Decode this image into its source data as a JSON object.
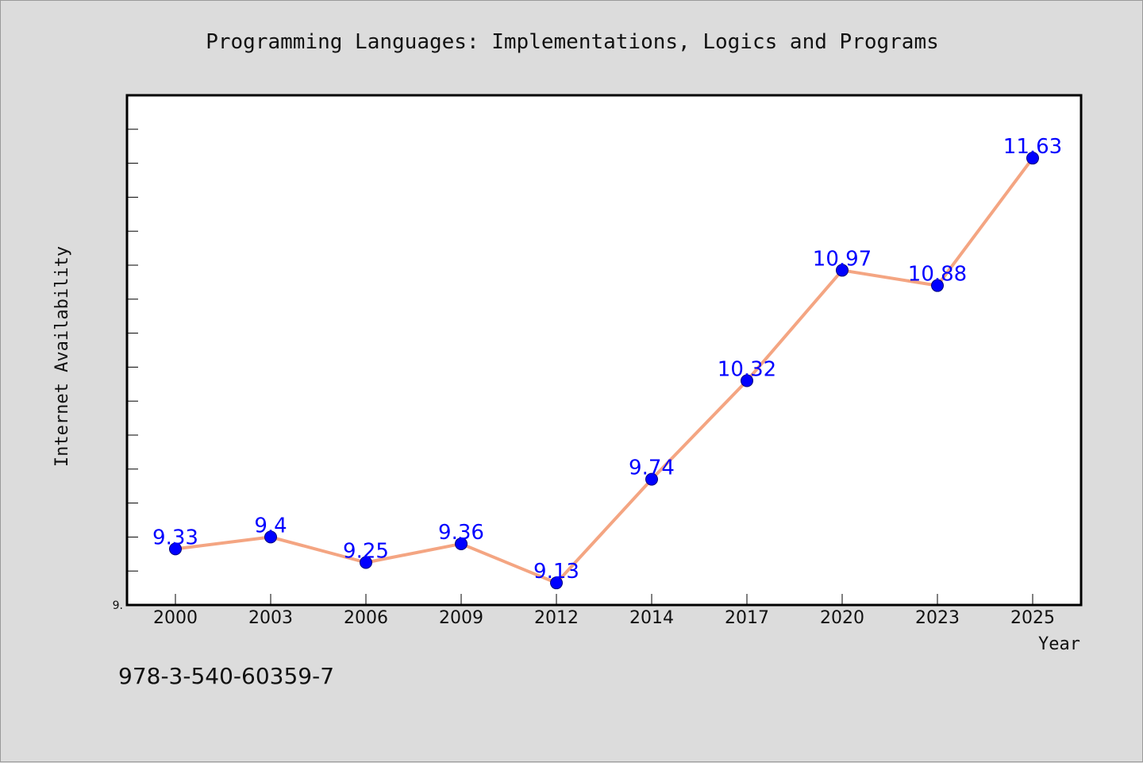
{
  "chart_data": {
    "type": "line",
    "title": "Programming Languages: Implementations, Logics and Programs",
    "xlabel": "Year",
    "ylabel": "Internet Availability",
    "y_min_label": "9.",
    "categories": [
      "2000",
      "2003",
      "2006",
      "2009",
      "2012",
      "2014",
      "2017",
      "2020",
      "2023",
      "2025"
    ],
    "series": [
      {
        "values": [
          9.33,
          9.4,
          9.25,
          9.36,
          9.13,
          9.74,
          10.32,
          10.97,
          10.88,
          11.63
        ]
      }
    ],
    "data_labels": [
      "9.33",
      "9.4",
      "9.25",
      "9.36",
      "9.13",
      "9.74",
      "10.32",
      "10.97",
      "10.88",
      "11.63"
    ],
    "ylim": [
      9.0,
      12.0
    ],
    "grid": false,
    "line_color": "#f4a582",
    "marker_color": "#0000ff",
    "label_color": "#0000ff",
    "plot_background": "#ffffff",
    "figure_background": "#dcdcdc"
  },
  "footer": {
    "isbn": "978-3-540-60359-7"
  }
}
